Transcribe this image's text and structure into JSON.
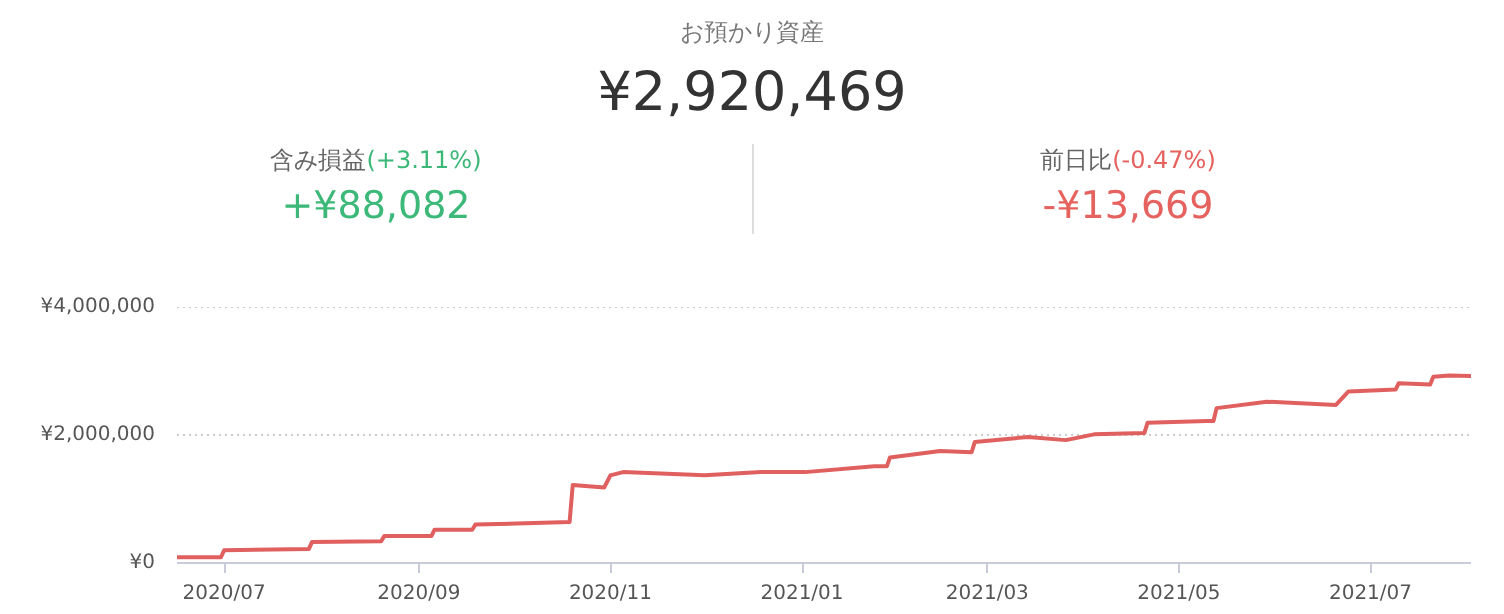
{
  "chart_data": {
    "type": "line",
    "title": "お預かり資産",
    "subtitle": "¥2,920,469",
    "annotations": [
      "含み損益",
      "(+3.11%)",
      "+¥88,082",
      "前日比",
      "(-0.47%)",
      "-¥13,669"
    ],
    "x": [
      "2020-06-16",
      "2020-06-30",
      "2020-07-01",
      "2020-07-28",
      "2020-07-29",
      "2020-08-20",
      "2020-08-21",
      "2020-09-05",
      "2020-09-06",
      "2020-09-18",
      "2020-09-19",
      "2020-10-19",
      "2020-10-20",
      "2020-10-30",
      "2020-11-01",
      "2020-11-05",
      "2020-12-01",
      "2020-12-19",
      "2021-01-02",
      "2021-01-24",
      "2021-01-28",
      "2021-01-29",
      "2021-02-14",
      "2021-02-24",
      "2021-02-25",
      "2021-03-14",
      "2021-03-26",
      "2021-04-04",
      "2021-04-20",
      "2021-04-21",
      "2021-05-10",
      "2021-05-12",
      "2021-05-13",
      "2021-05-29",
      "2021-06-20",
      "2021-06-24",
      "2021-07-09",
      "2021-07-10",
      "2021-07-20",
      "2021-07-21",
      "2021-07-26",
      "2021-08-02"
    ],
    "series": [
      {
        "color": "#e0605f",
        "values": [
          90000,
          90000,
          200000,
          220000,
          330000,
          340000,
          420000,
          420000,
          520000,
          520000,
          600000,
          640000,
          1220000,
          1180000,
          1370000,
          1420000,
          1370000,
          1420000,
          1420000,
          1510000,
          1510000,
          1650000,
          1750000,
          1730000,
          1890000,
          1970000,
          1920000,
          2010000,
          2030000,
          2190000,
          2220000,
          2220000,
          2420000,
          2520000,
          2470000,
          2680000,
          2710000,
          2810000,
          2790000,
          2910000,
          2930000,
          2920000
        ]
      }
    ],
    "xlim": [
      "2020-06-16",
      "2021-08-02"
    ],
    "xticks": [
      {
        "value": "2020-07-01",
        "label": "2020/07"
      },
      {
        "value": "2020-09-01",
        "label": "2020/09"
      },
      {
        "value": "2020-11-01",
        "label": "2020/11"
      },
      {
        "value": "2021-01-01",
        "label": "2021/01"
      },
      {
        "value": "2021-03-01",
        "label": "2021/03"
      },
      {
        "value": "2021-05-01",
        "label": "2021/05"
      },
      {
        "value": "2021-07-01",
        "label": "2021/07"
      }
    ],
    "ylim": [
      0,
      4000000
    ],
    "yticks": [
      {
        "value": 0,
        "label": "¥0"
      },
      {
        "value": 2000000,
        "label": "¥2,000,000"
      },
      {
        "value": 4000000,
        "label": "¥4,000,000"
      }
    ],
    "grid": "y",
    "marker": "none",
    "line_style": "solid"
  }
}
